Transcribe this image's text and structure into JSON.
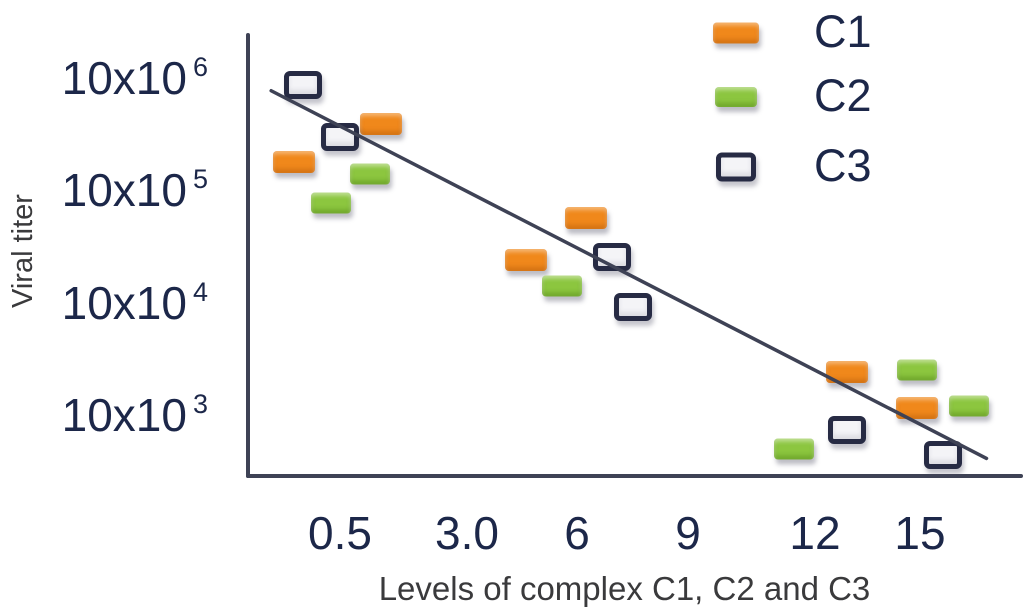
{
  "chart_data": {
    "type": "scatter",
    "title": "",
    "xlabel": "Levels of complex C1, C2 and C3",
    "ylabel": "Viral titer",
    "yscale": "log",
    "grid": false,
    "legend_position": "top-right",
    "x_ticks": [
      {
        "label": "0.5",
        "value": 0.5
      },
      {
        "label": "3.0",
        "value": 3
      },
      {
        "label": "6",
        "value": 6
      },
      {
        "label": "9",
        "value": 9
      },
      {
        "label": "12",
        "value": 12
      },
      {
        "label": "15",
        "value": 15
      }
    ],
    "y_ticks": [
      {
        "base": "10x10",
        "exp": "6",
        "value": 10000000
      },
      {
        "base": "10x10",
        "exp": "5",
        "value": 1000000
      },
      {
        "base": "10x10",
        "exp": "4",
        "value": 100000
      },
      {
        "base": "10x10",
        "exp": "3",
        "value": 10000
      }
    ],
    "legend": [
      {
        "label": "C1",
        "marker": "c1"
      },
      {
        "label": "C2",
        "marker": "c2"
      },
      {
        "label": "C3",
        "marker": "c3"
      }
    ],
    "series": [
      {
        "name": "C1",
        "marker": "c1",
        "points": [
          {
            "x": 0.25,
            "y": 1800000
          },
          {
            "x": 1.3,
            "y": 3900000
          },
          {
            "x": 4.6,
            "y": 240000
          },
          {
            "x": 6.25,
            "y": 570000
          },
          {
            "x": 12.9,
            "y": 24000
          },
          {
            "x": 14.9,
            "y": 11500
          }
        ]
      },
      {
        "name": "C2",
        "marker": "c2",
        "points": [
          {
            "x": 0.45,
            "y": 770000
          },
          {
            "x": 1.1,
            "y": 1400000
          },
          {
            "x": 5.6,
            "y": 140000
          },
          {
            "x": 11.5,
            "y": 5000
          },
          {
            "x": 14.9,
            "y": 25000
          },
          {
            "x": 16.4,
            "y": 12000
          }
        ]
      },
      {
        "name": "C3",
        "marker": "c3",
        "points": [
          {
            "x": 0.3,
            "y": 8700000
          },
          {
            "x": 0.5,
            "y": 3000000
          },
          {
            "x": 6.95,
            "y": 255000
          },
          {
            "x": 7.5,
            "y": 91000
          },
          {
            "x": 12.9,
            "y": 7300
          },
          {
            "x": 15.65,
            "y": 4400
          }
        ]
      }
    ],
    "trendline": {
      "x1": 0.13,
      "y1": 7700000,
      "x2": 16.9,
      "y2": 4100
    },
    "colors": {
      "c1_fill": "#F0881B",
      "c2_fill": "#8CC63F",
      "c3_fill": "#F4F4F7",
      "c3_border": "#272B44",
      "trend_line": "#3E4255",
      "axis_line": "#3E4255",
      "tick_label": "#1C2749",
      "axis_title": "#3A3A3C"
    }
  }
}
